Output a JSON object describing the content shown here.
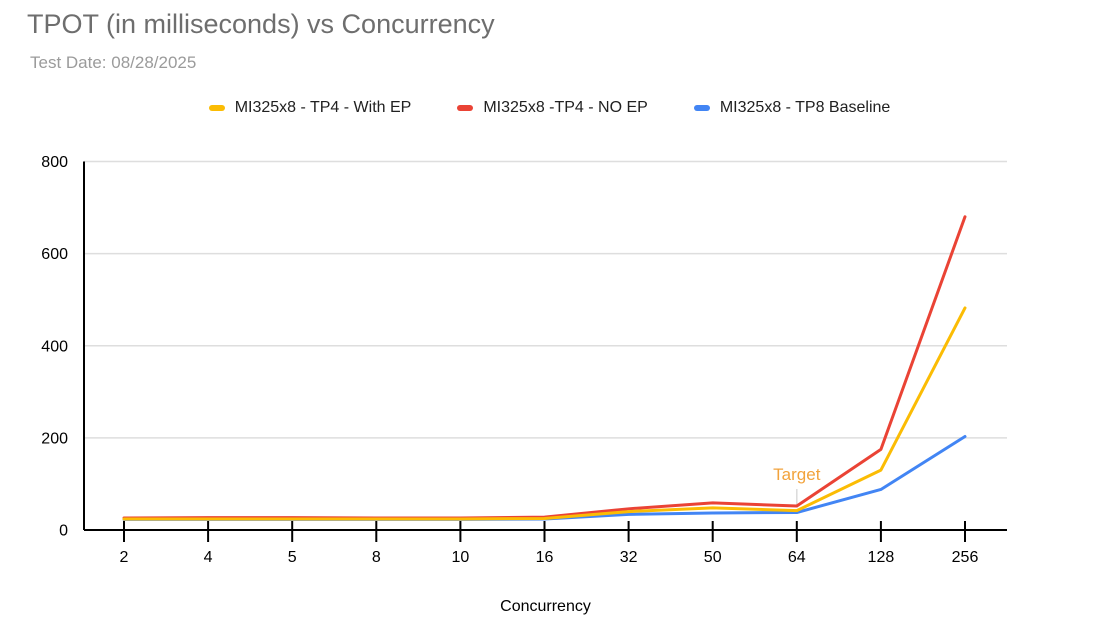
{
  "chart_data": {
    "type": "line",
    "title": "TPOT (in milliseconds) vs Concurrency",
    "subtitle": "Test Date: 08/28/2025",
    "xlabel": "Concurrency",
    "ylabel": "",
    "categories": [
      "2",
      "4",
      "5",
      "8",
      "10",
      "16",
      "32",
      "50",
      "64",
      "128",
      "256"
    ],
    "ylim": [
      0,
      800
    ],
    "yticks": [
      0,
      200,
      400,
      600,
      800
    ],
    "grid": "horizontal",
    "legend_position": "top",
    "series": [
      {
        "name": "MI325x8 - TP4 - With EP",
        "color": "#FBBC04",
        "values": [
          24,
          24,
          24,
          24,
          24,
          25,
          40,
          48,
          42,
          130,
          482
        ]
      },
      {
        "name": "MI325x8 -TP4 - NO EP",
        "color": "#EA4335",
        "values": [
          26,
          27,
          27,
          26,
          26,
          28,
          46,
          59,
          52,
          175,
          680
        ]
      },
      {
        "name": "MI325x8 - TP8 Baseline",
        "color": "#4285F4",
        "values": [
          23,
          23,
          23,
          23,
          23,
          24,
          34,
          37,
          38,
          88,
          203
        ]
      }
    ],
    "annotation": {
      "label": "Target",
      "category": "64",
      "color": "#F2A33C"
    },
    "style": {
      "background": "#FFFFFF",
      "title_color": "#6E6E6E",
      "subtitle_color": "#9B9B9B",
      "legend_text_color": "#212121",
      "axis_color": "#000000",
      "axis_text_color": "#000000",
      "grid_color": "#DEDEDE",
      "annotation_line_color": "#DADADA"
    }
  }
}
